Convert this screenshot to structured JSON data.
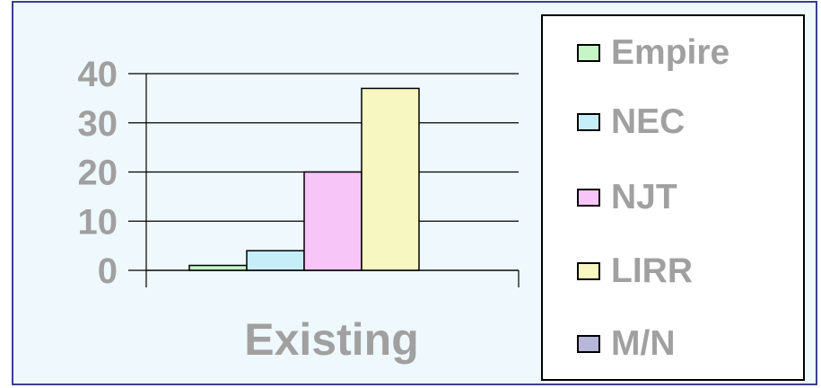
{
  "chart_data": {
    "type": "bar",
    "categories": [
      "Existing"
    ],
    "series": [
      {
        "name": "Empire",
        "values": [
          1
        ],
        "color": "#c6f5c6"
      },
      {
        "name": "NEC",
        "values": [
          4
        ],
        "color": "#c6eef9"
      },
      {
        "name": "NJT",
        "values": [
          20
        ],
        "color": "#f7c5f7"
      },
      {
        "name": "LIRR",
        "values": [
          37
        ],
        "color": "#f7f7c1"
      },
      {
        "name": "M/N",
        "values": [
          0
        ],
        "color": "#b7b7d9"
      }
    ],
    "yticks": [
      0,
      10,
      20,
      30,
      40
    ],
    "ylim": [
      0,
      40
    ],
    "grid": true,
    "legend_position": "right",
    "title": "",
    "xlabel": "",
    "ylabel": ""
  }
}
